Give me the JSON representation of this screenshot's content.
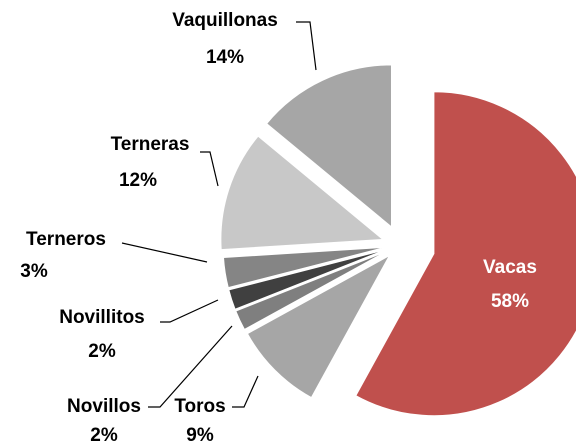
{
  "chart_data": {
    "type": "pie",
    "categories": [
      "Vacas",
      "Toros",
      "Novillos",
      "Novillitos",
      "Terneros",
      "Terneras",
      "Vaquillonas"
    ],
    "values": [
      58,
      9,
      2,
      2,
      3,
      12,
      14
    ],
    "value_labels": [
      "58%",
      "9%",
      "2%",
      "2%",
      "3%",
      "12%",
      "14%"
    ],
    "colors": [
      "#c0504d",
      "#a6a6a6",
      "#7f7f7f",
      "#404040",
      "#858585",
      "#c8c8c8",
      "#a6a6a6"
    ]
  }
}
